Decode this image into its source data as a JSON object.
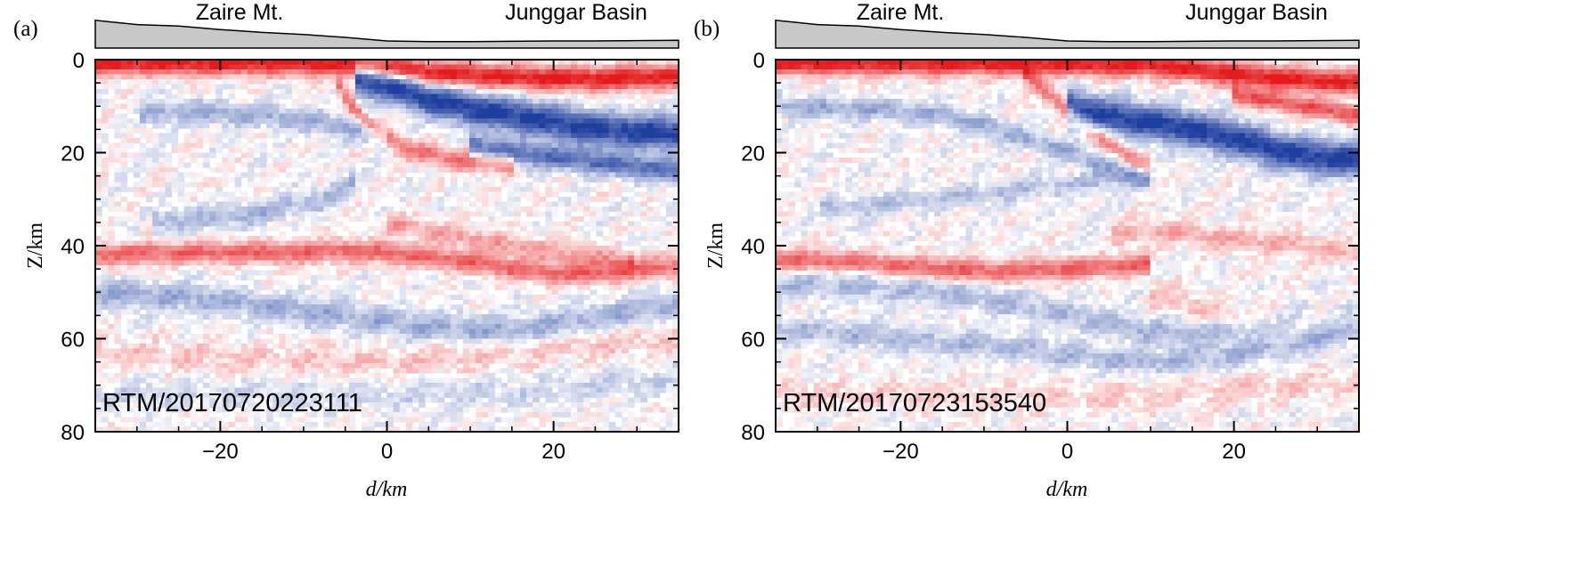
{
  "chart_data": [
    {
      "type": "heatmap",
      "panel_label": "(a)",
      "topography_labels": [
        "Zaire Mt.",
        "Junggar Basin"
      ],
      "annotation": "RTM/20170720223111",
      "xlabel": "d/km",
      "ylabel": "Z/km",
      "xlim": [
        -35,
        35
      ],
      "ylim": [
        0,
        80
      ],
      "y_inverted": true,
      "x_ticks": [
        "−20",
        "0",
        "20"
      ],
      "y_ticks": [
        "0",
        "20",
        "40",
        "60",
        "80"
      ],
      "colormap": {
        "positive": "#e41a1c",
        "zero": "#ffffff",
        "negative": "#1f3f9f"
      },
      "topography_profile": [
        [
          -35,
          3.9
        ],
        [
          -30,
          3.3
        ],
        [
          -25,
          3.1
        ],
        [
          -20,
          2.6
        ],
        [
          -15,
          2.2
        ],
        [
          -10,
          1.9
        ],
        [
          -5,
          1.5
        ],
        [
          0,
          1.0
        ],
        [
          5,
          0.9
        ],
        [
          10,
          0.9
        ],
        [
          15,
          0.95
        ],
        [
          20,
          1.0
        ],
        [
          25,
          1.0
        ],
        [
          30,
          1.05
        ],
        [
          35,
          1.1
        ]
      ],
      "reflectors": [
        {
          "x": [
            -35,
            -20,
            -10,
            -4,
            0,
            5,
            15,
            25,
            35
          ],
          "z": [
            0.8,
            0.8,
            0.8,
            0.9,
            1.5,
            2.8,
            3.8,
            4.2,
            3.5
          ],
          "amp": 1.0,
          "width": 2.4
        },
        {
          "x": [
            -4,
            0,
            5,
            10,
            15,
            20,
            25,
            30,
            35
          ],
          "z": [
            4.0,
            5.5,
            8.5,
            10.5,
            12.0,
            13.5,
            15.0,
            15.5,
            16.0
          ],
          "amp": -1.0,
          "width": 3.5
        },
        {
          "x": [
            10,
            15,
            20,
            25,
            30,
            35
          ],
          "z": [
            18.5,
            20.0,
            21.0,
            22.0,
            23.0,
            24.0
          ],
          "amp": -0.7,
          "width": 2.5
        },
        {
          "x": [
            -6,
            -3,
            0,
            3,
            8,
            15
          ],
          "z": [
            5.0,
            13.0,
            17.0,
            19.5,
            21.5,
            22.5
          ],
          "amp": 0.55,
          "width": 2.2
        },
        {
          "x": [
            -30,
            -25,
            -20,
            -15,
            -10,
            -5,
            0
          ],
          "z": [
            12.0,
            11.0,
            11.5,
            12.0,
            13.0,
            14.5,
            17.0
          ],
          "amp": -0.35,
          "width": 2.5
        },
        {
          "x": [
            -28,
            -22,
            -15,
            -8,
            -4
          ],
          "z": [
            35.0,
            34.0,
            33.0,
            30.0,
            26.0
          ],
          "amp": -0.3,
          "width": 2.5
        },
        {
          "x": [
            -35,
            -25,
            -15,
            -10,
            -5,
            0,
            5,
            10,
            15,
            20,
            25,
            30,
            35
          ],
          "z": [
            42.0,
            41.5,
            41.5,
            41.5,
            41.0,
            41.5,
            42.5,
            43.5,
            45.0,
            46.0,
            46.0,
            45.0,
            44.5
          ],
          "amp": 0.62,
          "width": 2.2
        },
        {
          "x": [
            0,
            5,
            10,
            15,
            20,
            25,
            30
          ],
          "z": [
            35.0,
            37.0,
            38.5,
            40.0,
            41.5,
            42.5,
            43.0
          ],
          "amp": 0.35,
          "width": 2.2
        },
        {
          "x": [
            -35,
            -25,
            -15,
            -5,
            0,
            5,
            10,
            15,
            20,
            25,
            30,
            35
          ],
          "z": [
            50.0,
            51.0,
            53.0,
            55.0,
            56.5,
            57.5,
            58.0,
            58.0,
            57.0,
            55.5,
            54.0,
            52.5
          ],
          "amp": -0.35,
          "width": 3.0
        },
        {
          "x": [
            -35,
            -20,
            -10,
            0,
            10,
            20,
            35
          ],
          "z": [
            63.0,
            64.0,
            64.5,
            65.0,
            64.0,
            62.0,
            60.0
          ],
          "amp": 0.18,
          "width": 3.0
        },
        {
          "x": [
            -35,
            -20,
            0,
            20,
            35
          ],
          "z": [
            72.0,
            72.0,
            72.5,
            71.0,
            69.0
          ],
          "amp": -0.15,
          "width": 3.0
        }
      ]
    },
    {
      "type": "heatmap",
      "panel_label": "(b)",
      "topography_labels": [
        "Zaire Mt.",
        "Junggar Basin"
      ],
      "annotation": "RTM/20170723153540",
      "xlabel": "d/km",
      "ylabel": "Z/km",
      "xlim": [
        -35,
        35
      ],
      "ylim": [
        0,
        80
      ],
      "y_inverted": true,
      "x_ticks": [
        "−20",
        "0",
        "20"
      ],
      "y_ticks": [
        "0",
        "20",
        "40",
        "60",
        "80"
      ],
      "colormap": {
        "positive": "#e41a1c",
        "zero": "#ffffff",
        "negative": "#1f3f9f"
      },
      "topography_profile": [
        [
          -35,
          3.9
        ],
        [
          -30,
          3.3
        ],
        [
          -25,
          3.1
        ],
        [
          -20,
          2.6
        ],
        [
          -15,
          2.2
        ],
        [
          -10,
          1.9
        ],
        [
          -5,
          1.5
        ],
        [
          0,
          1.0
        ],
        [
          5,
          0.9
        ],
        [
          10,
          0.9
        ],
        [
          15,
          0.95
        ],
        [
          20,
          1.0
        ],
        [
          25,
          1.0
        ],
        [
          30,
          1.05
        ],
        [
          35,
          1.1
        ]
      ],
      "reflectors": [
        {
          "x": [
            -35,
            -20,
            -10,
            0,
            10,
            15,
            20,
            25,
            30,
            35
          ],
          "z": [
            0.8,
            0.8,
            0.8,
            0.9,
            1.2,
            2.0,
            3.0,
            4.0,
            4.5,
            5.0
          ],
          "amp": 1.0,
          "width": 2.4
        },
        {
          "x": [
            20,
            25,
            30,
            35
          ],
          "z": [
            7.5,
            9.0,
            10.5,
            12.0
          ],
          "amp": 0.7,
          "width": 2.0
        },
        {
          "x": [
            0,
            3,
            6,
            10,
            15,
            20,
            25,
            30,
            35
          ],
          "z": [
            10.0,
            11.5,
            12.5,
            13.5,
            15.0,
            17.0,
            19.5,
            21.0,
            21.5
          ],
          "amp": -1.0,
          "width": 3.6
        },
        {
          "x": [
            -5,
            -2,
            2,
            6,
            10
          ],
          "z": [
            3.0,
            8.0,
            14.0,
            19.0,
            24.0
          ],
          "amp": 0.5,
          "width": 2.2
        },
        {
          "x": [
            -35,
            -28,
            -20,
            -15,
            -10,
            -5,
            0,
            5,
            10
          ],
          "z": [
            10.0,
            10.5,
            11.0,
            12.0,
            14.0,
            17.0,
            20.0,
            23.0,
            26.0
          ],
          "amp": -0.35,
          "width": 2.2
        },
        {
          "x": [
            -30,
            -20,
            -10,
            0,
            5,
            10
          ],
          "z": [
            32.0,
            31.0,
            29.0,
            27.0,
            26.0,
            25.0
          ],
          "amp": -0.25,
          "width": 2.2
        },
        {
          "x": [
            -35,
            -25,
            -20,
            -15,
            -10,
            -5,
            0,
            5,
            10
          ],
          "z": [
            43.0,
            43.5,
            44.5,
            45.0,
            45.5,
            45.5,
            45.0,
            44.5,
            44.0
          ],
          "amp": 0.62,
          "width": 2.2
        },
        {
          "x": [
            5,
            10,
            15,
            20,
            25,
            30,
            35
          ],
          "z": [
            38.0,
            37.0,
            37.5,
            38.5,
            39.5,
            40.5,
            41.5
          ],
          "amp": 0.28,
          "width": 2.5
        },
        {
          "x": [
            -35,
            -25,
            -15,
            -5,
            0,
            5,
            10,
            15,
            20,
            25,
            30,
            35
          ],
          "z": [
            48.0,
            48.5,
            50.0,
            53.0,
            55.0,
            57.0,
            58.5,
            59.0,
            58.0,
            56.5,
            55.0,
            53.5
          ],
          "amp": -0.28,
          "width": 3.0
        },
        {
          "x": [
            10,
            15,
            20,
            25,
            30,
            35
          ],
          "z": [
            50.0,
            53.0,
            55.0,
            56.0,
            55.0,
            54.0
          ],
          "amp": 0.2,
          "width": 3.0
        },
        {
          "x": [
            -35,
            -20,
            -5,
            0,
            5,
            10,
            15,
            20,
            25,
            30,
            35
          ],
          "z": [
            58.0,
            60.0,
            62.0,
            63.5,
            64.5,
            65.0,
            64.5,
            63.5,
            62.0,
            60.0,
            58.0
          ],
          "amp": -0.3,
          "width": 2.5
        },
        {
          "x": [
            -35,
            -20,
            0,
            20,
            35
          ],
          "z": [
            72.0,
            72.0,
            73.0,
            71.0,
            69.0
          ],
          "amp": 0.15,
          "width": 3.0
        }
      ]
    }
  ]
}
